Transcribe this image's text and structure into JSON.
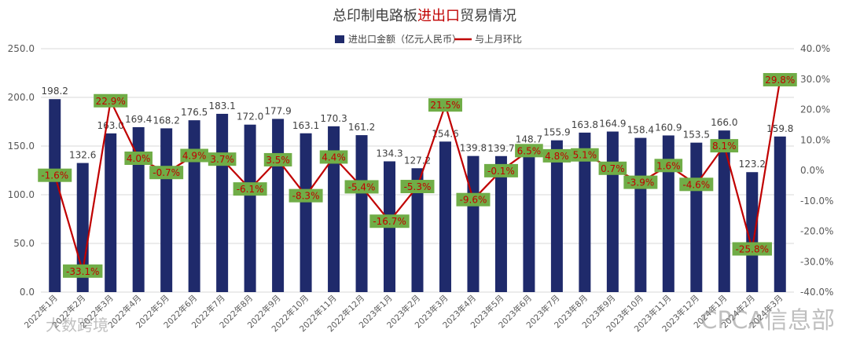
{
  "chart_data": {
    "type": "bar",
    "title_parts": [
      "总印制电路板",
      "进出口",
      "贸易情况"
    ],
    "categories": [
      "2022年1月",
      "2022年2月",
      "2022年3月",
      "2022年4月",
      "2022年5月",
      "2022年6月",
      "2022年7月",
      "2022年8月",
      "2022年9月",
      "2022年10月",
      "2022年11月",
      "2022年12月",
      "2023年1月",
      "2023年2月",
      "2023年3月",
      "2023年4月",
      "2023年5月",
      "2023年6月",
      "2023年7月",
      "2023年8月",
      "2023年9月",
      "2023年10月",
      "2023年11月",
      "2023年12月",
      "2024年1月",
      "2024年2月",
      "2024年3月"
    ],
    "series": [
      {
        "name": "进出口金额（亿元人民币）",
        "type": "bar",
        "axis": "left",
        "color": "#1f2a6b",
        "values": [
          198.2,
          132.6,
          163.0,
          169.4,
          168.2,
          176.5,
          183.1,
          172.0,
          177.9,
          163.1,
          170.3,
          161.2,
          134.3,
          127.2,
          154.6,
          139.8,
          139.7,
          148.7,
          155.9,
          163.8,
          164.9,
          158.4,
          160.9,
          153.5,
          166.0,
          123.2,
          159.8
        ],
        "labels": [
          "198.2",
          "132.6",
          "163.0",
          "169.4",
          "168.2",
          "176.5",
          "183.1",
          "172.0",
          "177.9",
          "163.1",
          "170.3",
          "161.2",
          "134.3",
          "127.2",
          "154.6",
          "139.8",
          "139.7",
          "148.7",
          "155.9",
          "163.8",
          "164.9",
          "158.4",
          "160.9",
          "153.5",
          "166.0",
          "123.2",
          "159.8"
        ]
      },
      {
        "name": "与上月环比",
        "type": "line",
        "axis": "right",
        "color": "#c00000",
        "values": [
          -1.6,
          -33.1,
          22.9,
          4.0,
          -0.7,
          4.9,
          3.7,
          -6.1,
          3.5,
          -8.3,
          4.4,
          -5.4,
          -16.7,
          -5.3,
          21.5,
          -9.6,
          -0.1,
          6.5,
          4.8,
          5.1,
          0.7,
          -3.9,
          1.6,
          -4.6,
          8.1,
          -25.8,
          29.8
        ],
        "labels": [
          "-1.6%",
          "-33.1%",
          "22.9%",
          "4.0%",
          "-0.7%",
          "4.9%",
          "3.7%",
          "-6.1%",
          "3.5%",
          "-8.3%",
          "4.4%",
          "-5.4%",
          "-16.7%",
          "-5.3%",
          "21.5%",
          "-9.6%",
          "-0.1%",
          "6.5%",
          "4.8%",
          "5.1%",
          "0.7%",
          "-3.9%",
          "1.6%",
          "-4.6%",
          "8.1%",
          "-25.8%",
          "29.8%"
        ]
      }
    ],
    "y_left": {
      "min": 0,
      "max": 250,
      "step": 50,
      "tick_labels": [
        "0.0",
        "50.0",
        "100.0",
        "150.0",
        "200.0",
        "250.0"
      ]
    },
    "y_right": {
      "min": -40,
      "max": 40,
      "step": 10,
      "tick_labels": [
        "-40.0%",
        "-30.0%",
        "-20.0%",
        "-10.0%",
        "0.0%",
        "10.0%",
        "20.0%",
        "30.0%",
        "40.0%"
      ]
    },
    "grid": true,
    "legend_position": "top-center",
    "label_box_color": "#70ad47",
    "watermarks": [
      "大数跨境",
      "CPCA信息部"
    ]
  }
}
